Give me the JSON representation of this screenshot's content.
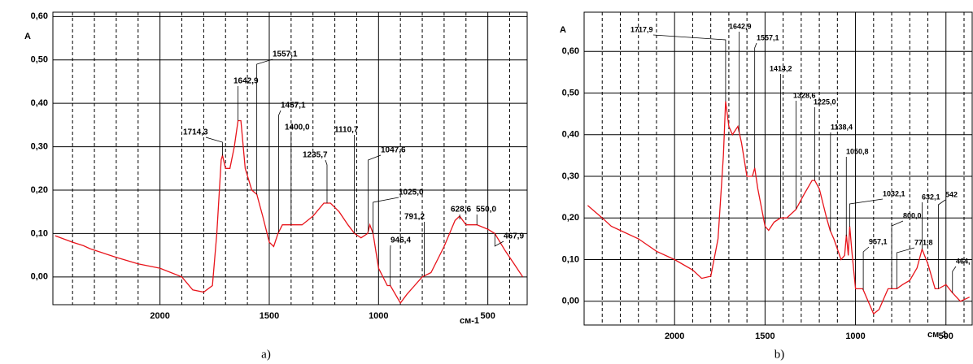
{
  "chart_data": [
    {
      "type": "line",
      "y_label": "A",
      "x_label": "см-1",
      "caption": "a)",
      "xlim": [
        2490,
        320
      ],
      "ylim": [
        -0.064,
        0.61
      ],
      "xticks": [
        2000,
        1500,
        1000,
        500
      ],
      "yticks": [
        {
          "value": 0,
          "label": "0,00"
        },
        {
          "value": 0.1,
          "label": "0,10"
        },
        {
          "value": 0.2,
          "label": "0,20"
        },
        {
          "value": 0.3,
          "label": "0,30"
        },
        {
          "value": 0.4,
          "label": "0,40"
        },
        {
          "value": 0.5,
          "label": "0,50"
        },
        {
          "value": 0.6,
          "label": "0,60"
        }
      ],
      "x_minor_grid": [
        2400,
        2300,
        2200,
        2100,
        1900,
        1800,
        1700,
        1600,
        1400,
        1300,
        1200,
        1100,
        900,
        800,
        700,
        600,
        400
      ],
      "x": [
        2480,
        2400,
        2350,
        2320,
        2200,
        2100,
        2000,
        1900,
        1850,
        1800,
        1760,
        1740,
        1720,
        1714,
        1700,
        1680,
        1660,
        1643,
        1630,
        1610,
        1580,
        1557,
        1530,
        1500,
        1480,
        1460,
        1440,
        1400,
        1350,
        1300,
        1250,
        1220,
        1180,
        1140,
        1110,
        1080,
        1050,
        1040,
        1025,
        1000,
        960,
        946,
        900,
        870,
        800,
        760,
        700,
        650,
        629,
        600,
        550,
        500,
        468,
        420,
        380,
        340
      ],
      "series": [
        {
          "color": "#e8141b",
          "values": [
            0.095,
            0.08,
            0.072,
            0.065,
            0.045,
            0.03,
            0.02,
            0.0,
            -0.03,
            -0.035,
            -0.02,
            0.1,
            0.27,
            0.28,
            0.25,
            0.25,
            0.3,
            0.36,
            0.36,
            0.25,
            0.2,
            0.19,
            0.14,
            0.08,
            0.07,
            0.1,
            0.12,
            0.12,
            0.12,
            0.14,
            0.17,
            0.17,
            0.15,
            0.12,
            0.1,
            0.09,
            0.1,
            0.12,
            0.1,
            0.02,
            -0.02,
            -0.02,
            -0.06,
            -0.04,
            0.0,
            0.01,
            0.07,
            0.13,
            0.14,
            0.12,
            0.12,
            0.11,
            0.1,
            0.06,
            0.03,
            0.0
          ]
        }
      ],
      "annotations": [
        {
          "x": 1714.3,
          "label": "1714,3"
        },
        {
          "x": 1642.9,
          "label": "1642,9"
        },
        {
          "x": 1557.1,
          "label": "1557,1"
        },
        {
          "x": 1457.1,
          "label": "1457,1"
        },
        {
          "x": 1400.0,
          "label": "1400,0"
        },
        {
          "x": 1235.7,
          "label": "1235,7"
        },
        {
          "x": 1110.7,
          "label": "1110,7"
        },
        {
          "x": 1047.6,
          "label": "1047,6"
        },
        {
          "x": 1025.0,
          "label": "1025,0"
        },
        {
          "x": 946.4,
          "label": "946,4"
        },
        {
          "x": 791.2,
          "label": "791,2"
        },
        {
          "x": 628.6,
          "label": "628,6"
        },
        {
          "x": 550.0,
          "label": "550,0"
        },
        {
          "x": 467.9,
          "label": "467,9"
        }
      ]
    },
    {
      "type": "line",
      "y_label": "A",
      "x_label": "см-1",
      "caption": "b)",
      "xlim": [
        2500,
        355
      ],
      "ylim": [
        -0.057,
        0.694
      ],
      "xticks": [
        2000,
        1500,
        1000,
        500
      ],
      "yticks": [
        {
          "value": 0,
          "label": "0,00"
        },
        {
          "value": 0.1,
          "label": "0,10"
        },
        {
          "value": 0.2,
          "label": "0,20"
        },
        {
          "value": 0.3,
          "label": "0,30"
        },
        {
          "value": 0.4,
          "label": "0,40"
        },
        {
          "value": 0.5,
          "label": "0,50"
        },
        {
          "value": 0.6,
          "label": "0,60"
        }
      ],
      "x_minor_grid": [
        2400,
        2300,
        2200,
        2100,
        1900,
        1800,
        1700,
        1600,
        1400,
        1300,
        1200,
        1100,
        900,
        800,
        700,
        600,
        400
      ],
      "x": [
        2480,
        2400,
        2350,
        2300,
        2200,
        2100,
        2000,
        1900,
        1850,
        1800,
        1760,
        1730,
        1718,
        1700,
        1680,
        1650,
        1630,
        1600,
        1570,
        1557,
        1540,
        1500,
        1480,
        1450,
        1414,
        1380,
        1330,
        1280,
        1240,
        1225,
        1200,
        1160,
        1140,
        1120,
        1080,
        1060,
        1050,
        1040,
        1032,
        1020,
        1000,
        960,
        930,
        900,
        870,
        820,
        800,
        772,
        740,
        700,
        660,
        632,
        600,
        560,
        542,
        500,
        464,
        420,
        370
      ],
      "series": [
        {
          "color": "#e8141b",
          "values": [
            0.23,
            0.2,
            0.18,
            0.17,
            0.15,
            0.12,
            0.1,
            0.075,
            0.055,
            0.06,
            0.15,
            0.35,
            0.48,
            0.42,
            0.4,
            0.42,
            0.38,
            0.3,
            0.3,
            0.32,
            0.27,
            0.18,
            0.17,
            0.19,
            0.2,
            0.2,
            0.22,
            0.26,
            0.29,
            0.29,
            0.27,
            0.2,
            0.17,
            0.15,
            0.1,
            0.11,
            0.16,
            0.11,
            0.18,
            0.12,
            0.03,
            0.03,
            0.0,
            -0.03,
            -0.02,
            0.03,
            0.03,
            0.03,
            0.04,
            0.05,
            0.08,
            0.125,
            0.09,
            0.03,
            0.03,
            0.04,
            0.02,
            0.0,
            0.01
          ]
        }
      ],
      "annotations": [
        {
          "x": 1717.9,
          "label": "1717,9"
        },
        {
          "x": 1642.9,
          "label": "1642,9"
        },
        {
          "x": 1557.1,
          "label": "1557,1"
        },
        {
          "x": 1414.2,
          "label": "1414,2"
        },
        {
          "x": 1328.6,
          "label": "1328,6"
        },
        {
          "x": 1225.0,
          "label": "1225,0"
        },
        {
          "x": 1138.4,
          "label": "1138,4"
        },
        {
          "x": 1050.8,
          "label": "1050,8"
        },
        {
          "x": 1032.1,
          "label": "1032,1"
        },
        {
          "x": 957.1,
          "label": "957,1"
        },
        {
          "x": 800.0,
          "label": "800,0"
        },
        {
          "x": 771.8,
          "label": "771,8"
        },
        {
          "x": 632.1,
          "label": "632,1"
        },
        {
          "x": 542,
          "label": "542"
        },
        {
          "x": 464,
          "label": "464,"
        }
      ]
    }
  ]
}
